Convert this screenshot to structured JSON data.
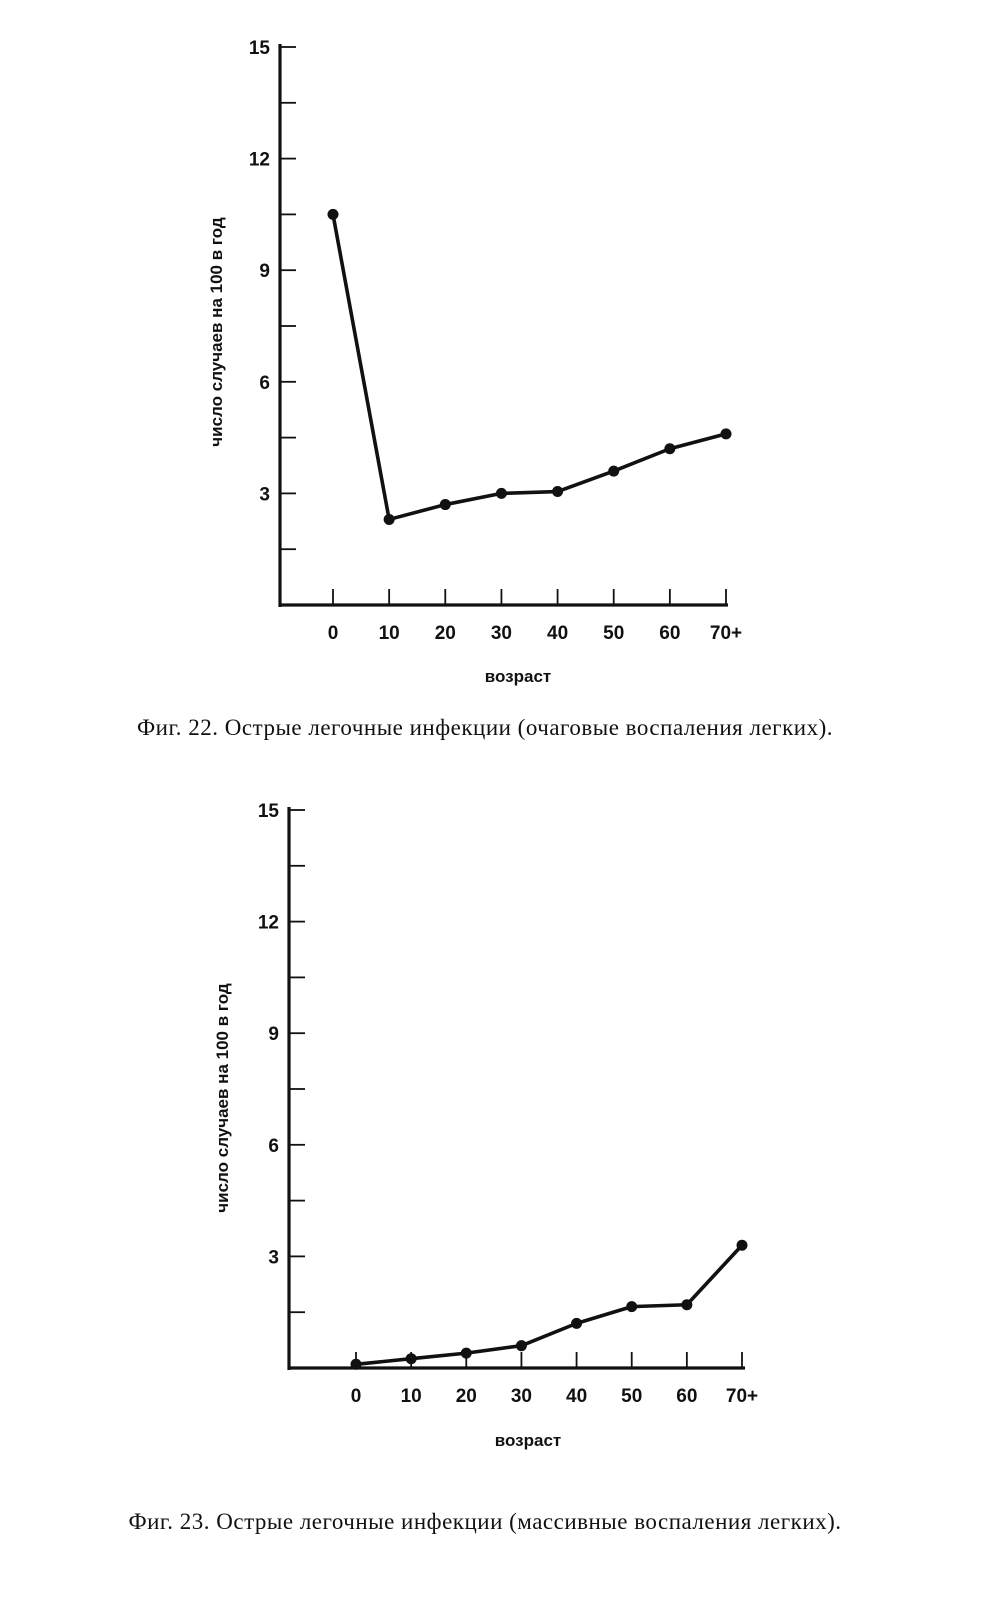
{
  "chart_data": [
    {
      "type": "line",
      "caption": "Фиг. 22. Острые легочные инфекции (очаговые воспаления легких).",
      "xlabel": "возраст",
      "ylabel": "число случаев на 100 в год",
      "categories": [
        "0",
        "10",
        "20",
        "30",
        "40",
        "50",
        "60",
        "70+"
      ],
      "series": [
        {
          "values": [
            10.5,
            2.3,
            2.7,
            3.0,
            3.05,
            3.6,
            4.2,
            4.6
          ]
        }
      ],
      "y_ticks": [
        "3",
        "6",
        "9",
        "12",
        "15"
      ],
      "ylim": [
        0,
        15
      ],
      "grid": false,
      "legend": "none"
    },
    {
      "type": "line",
      "caption": "Фиг. 23. Острые легочные инфекции (массивные воспаления легких).",
      "xlabel": "возраст",
      "ylabel": "число случаев на 100 в год",
      "categories": [
        "0",
        "10",
        "20",
        "30",
        "40",
        "50",
        "60",
        "70+"
      ],
      "series": [
        {
          "values": [
            0.1,
            0.25,
            0.4,
            0.6,
            1.2,
            1.65,
            1.7,
            3.3
          ]
        }
      ],
      "y_ticks": [
        "3",
        "6",
        "9",
        "12",
        "15"
      ],
      "ylim": [
        0,
        15
      ],
      "grid": false,
      "legend": "none"
    }
  ]
}
